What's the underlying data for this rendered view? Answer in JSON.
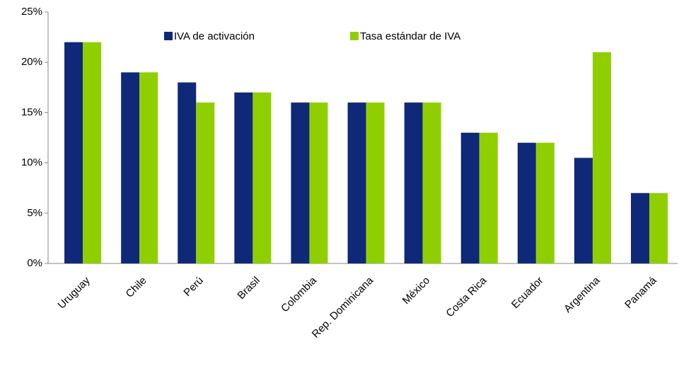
{
  "chart_data": {
    "type": "bar",
    "categories": [
      "Uruguay",
      "Chile",
      "Perú",
      "Brasil",
      "Colombia",
      "Rep. Dominicana",
      "México",
      "Costa Rica",
      "Ecuador",
      "Argentina",
      "Panamá"
    ],
    "series": [
      {
        "name": "IVA de activación",
        "color": "#0f2878",
        "values": [
          22,
          19,
          18,
          17,
          16,
          16,
          16,
          13,
          12,
          10.5,
          7
        ]
      },
      {
        "name": "Tasa estándar de IVA",
        "color": "#8fcf00",
        "values": [
          22,
          19,
          16,
          17,
          16,
          16,
          16,
          13,
          12,
          21,
          7
        ]
      }
    ],
    "ylim": [
      0,
      25
    ],
    "yticks": [
      {
        "value": 0,
        "label": "0%"
      },
      {
        "value": 5,
        "label": "5%"
      },
      {
        "value": 10,
        "label": "10%"
      },
      {
        "value": 15,
        "label": "15%"
      },
      {
        "value": 20,
        "label": "20%"
      },
      {
        "value": 25,
        "label": "25%"
      }
    ],
    "grid": false,
    "legend": "top"
  }
}
